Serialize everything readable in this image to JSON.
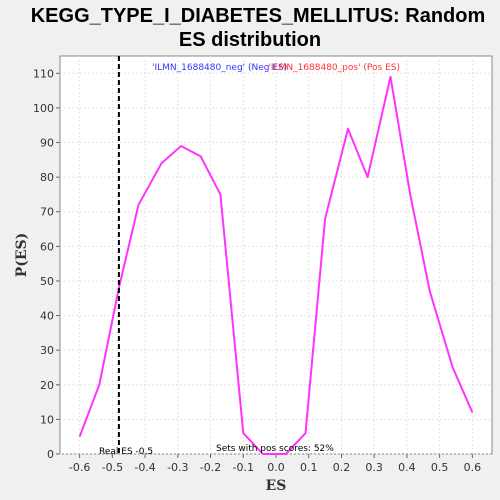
{
  "chart_data": {
    "type": "line",
    "title_line1": "KEGG_TYPE_I_DIABETES_MELLITUS: Random",
    "title_line2": "ES distribution",
    "xlabel": "ES",
    "ylabel": "P(ES)",
    "xlim": [
      -0.66,
      0.66
    ],
    "ylim": [
      0,
      115
    ],
    "x_ticks": [
      -0.6,
      -0.5,
      -0.4,
      -0.3,
      -0.2,
      -0.1,
      0.0,
      0.1,
      0.2,
      0.3,
      0.4,
      0.5,
      0.6
    ],
    "x_tick_labels": [
      "-0.6",
      "-0.5",
      "-0.4",
      "-0.3",
      "-0.2",
      "-0.1",
      "0.0",
      "0.1",
      "0.2",
      "0.3",
      "0.4",
      "0.5",
      "0.6"
    ],
    "y_ticks": [
      0,
      10,
      20,
      30,
      40,
      50,
      60,
      70,
      80,
      90,
      100,
      110
    ],
    "y_tick_labels": [
      "0",
      "10",
      "20",
      "30",
      "40",
      "50",
      "60",
      "70",
      "80",
      "90",
      "100",
      "110"
    ],
    "grid": true,
    "series": [
      {
        "color": "#ff33ff",
        "x": [
          -0.6,
          -0.54,
          -0.48,
          -0.42,
          -0.35,
          -0.29,
          -0.23,
          -0.17,
          -0.1,
          -0.04,
          0.03,
          0.09,
          0.15,
          0.22,
          0.28,
          0.35,
          0.41,
          0.47,
          0.54,
          0.6
        ],
        "y": [
          5,
          20,
          48,
          72,
          84,
          89,
          86,
          75,
          6,
          0,
          0,
          6,
          68,
          94,
          80,
          109,
          75,
          47,
          25,
          12
        ]
      }
    ],
    "real_es": -0.48,
    "annotations": {
      "neg_label": "'ILMN_1688480_neg' (Neg ES)",
      "neg_color": "#3333ff",
      "pos_label": "'ILMN_1688480_pos' (Pos ES)",
      "pos_color": "#ff3333",
      "real_es_label": "Real ES -0.5",
      "sets_label": "Sets with pos scores: 52%"
    }
  }
}
